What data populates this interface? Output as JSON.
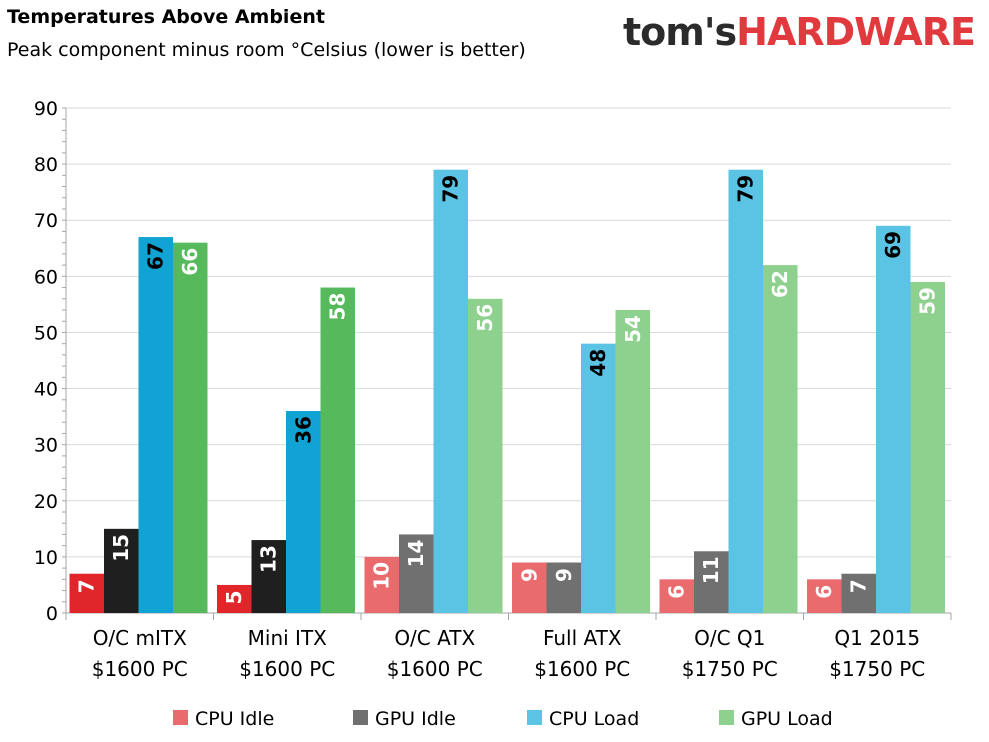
{
  "title": "Temperatures Above Ambient",
  "subtitle": "Peak component minus room °Celsius (lower is better)",
  "logo": {
    "part1": "tom's",
    "part2": "HARDWARE"
  },
  "colors": {
    "cpu_idle_dark": "#e0262b",
    "gpu_idle_dark": "#1f1f1f",
    "cpu_load_dark": "#10a3d4",
    "gpu_load_dark": "#56b95c",
    "cpu_idle_light": "#ea6b6e",
    "gpu_idle_light": "#707070",
    "cpu_load_light": "#5bc3e3",
    "gpu_load_light": "#8ed08e"
  },
  "chart_data": {
    "type": "bar",
    "categories": [
      "O/C mITX\n$1600 PC",
      "Mini ITX\n$1600 PC",
      "O/C ATX\n$1600 PC",
      "Full ATX\n$1600 PC",
      "O/C Q1\n$1750 PC",
      "Q1 2015\n$1750 PC"
    ],
    "highlighted_categories": [
      0,
      1
    ],
    "series": [
      {
        "name": "CPU Idle",
        "values": [
          7,
          5,
          10,
          9,
          6,
          6
        ],
        "labels": [
          "7",
          "5",
          "10",
          "9",
          "6",
          "6"
        ]
      },
      {
        "name": "GPU Idle",
        "values": [
          15,
          13,
          14,
          9,
          11,
          7
        ],
        "labels": [
          "15",
          "13",
          "14",
          "9",
          "11",
          "7"
        ]
      },
      {
        "name": "CPU Load",
        "values": [
          67,
          36,
          79,
          48,
          79,
          69
        ],
        "labels": [
          "67",
          "36",
          "79",
          "48",
          "79",
          "69"
        ]
      },
      {
        "name": "GPU Load",
        "values": [
          66,
          58,
          56,
          54,
          62,
          59
        ],
        "labels": [
          "66",
          "58",
          "56",
          "54",
          "62",
          "59"
        ]
      }
    ],
    "ylim": [
      0,
      90
    ],
    "yticks": [
      "0",
      "10",
      "20",
      "30",
      "40",
      "50",
      "60",
      "70",
      "80",
      "90"
    ],
    "grid": true,
    "legend_position": "bottom"
  }
}
